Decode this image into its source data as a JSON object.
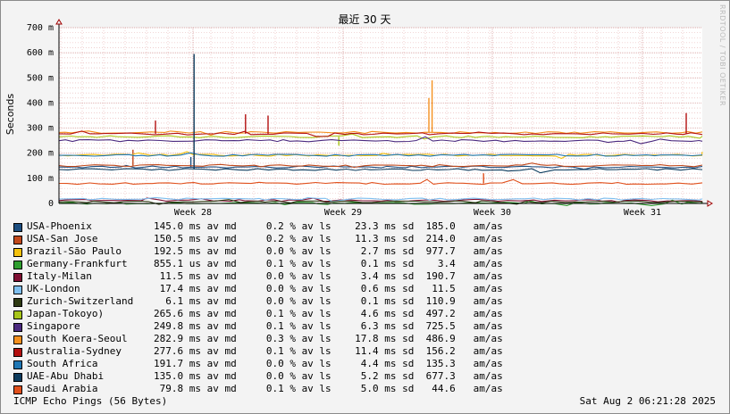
{
  "chart_data": {
    "type": "line",
    "title": "最近 30 天",
    "ylabel": "Seconds",
    "ylim": [
      0,
      0.7
    ],
    "y_ticks": [
      "0",
      "100 m",
      "200 m",
      "300 m",
      "400 m",
      "500 m",
      "600 m",
      "700 m"
    ],
    "x_ticks": [
      "Week 28",
      "Week 29",
      "Week 30",
      "Week 31"
    ],
    "watermark": "RRDTOOL / TOBI OETIKER",
    "grid": true,
    "legend_position": "bottom",
    "series": [
      {
        "name": "USA-Phoenix",
        "color": "#1c4e80",
        "stats": "145.0 ms av md     0.2 % av ls    23.3 ms sd  185.0   am/as",
        "value": 0.145,
        "spikes": [
          [
            0.205,
            0.185
          ]
        ]
      },
      {
        "name": "USA-San Jose",
        "color": "#c1481b",
        "stats": "150.5 ms av md     0.2 % av ls    11.3 ms sd  214.0   am/as",
        "value": 0.1505,
        "spikes": [
          [
            0.115,
            0.214
          ]
        ]
      },
      {
        "name": "Brazil-São Paulo",
        "color": "#f4c20d",
        "stats": "192.5 ms av md     0.0 % av ls     2.7 ms sd  977.7   am/as",
        "value": 0.1925,
        "spikes": []
      },
      {
        "name": "Germany-Frankfurt",
        "color": "#2f9e2f",
        "stats": "855.1 us av md     0.1 % av ls     0.1 ms sd    3.4   am/as",
        "value": 0.00086,
        "spikes": []
      },
      {
        "name": "Italy-Milan",
        "color": "#7f0f33",
        "stats": " 11.5 ms av md     0.0 % av ls     3.4 ms sd  190.7   am/as",
        "value": 0.0115,
        "spikes": []
      },
      {
        "name": "UK-London",
        "color": "#7fbfef",
        "stats": " 17.4 ms av md     0.0 % av ls     0.6 ms sd   11.5   am/as",
        "value": 0.0174,
        "spikes": []
      },
      {
        "name": "Zurich-Switzerland",
        "color": "#2e3a13",
        "stats": "  6.1 ms av md     0.0 % av ls     0.1 ms sd  110.9   am/as",
        "value": 0.0061,
        "spikes": []
      },
      {
        "name": "Japan-Tokoyo)",
        "color": "#a8c61a",
        "stats": "265.6 ms av md     0.1 % av ls     4.6 ms sd  497.2   am/as",
        "value": 0.2656,
        "spikes": [
          [
            0.435,
            0.23
          ]
        ]
      },
      {
        "name": "Singapore",
        "color": "#4b2a7f",
        "stats": "249.8 ms av md     0.1 % av ls     6.3 ms sd  725.5   am/as",
        "value": 0.2498,
        "spikes": []
      },
      {
        "name": "South Koera-Seoul",
        "color": "#f4901e",
        "stats": "282.9 ms av md     0.3 % av ls    17.8 ms sd  486.9   am/as",
        "value": 0.2829,
        "spikes": [
          [
            0.575,
            0.42
          ],
          [
            0.58,
            0.49
          ]
        ]
      },
      {
        "name": "Australia-Sydney",
        "color": "#b30f0f",
        "stats": "277.6 ms av md     0.1 % av ls    11.4 ms sd  156.2   am/as",
        "value": 0.2776,
        "spikes": [
          [
            0.15,
            0.33
          ],
          [
            0.29,
            0.355
          ],
          [
            0.325,
            0.35
          ],
          [
            0.975,
            0.36
          ]
        ]
      },
      {
        "name": "South Africa",
        "color": "#1f77b4",
        "stats": "191.7 ms av md     0.0 % av ls     4.4 ms sd  135.3   am/as",
        "value": 0.1917,
        "spikes": []
      },
      {
        "name": "UAE-Abu Dhabi",
        "color": "#0d3c5e",
        "stats": "135.0 ms av md     0.0 % av ls     5.2 ms sd  677.3   am/as",
        "value": 0.135,
        "spikes": [
          [
            0.21,
            0.595
          ]
        ]
      },
      {
        "name": "Saudi Arabia",
        "color": "#e0501c",
        "stats": " 79.8 ms av md     0.1 % av ls     5.0 ms sd   44.6   am/as",
        "value": 0.0798,
        "spikes": [
          [
            0.66,
            0.12
          ]
        ]
      }
    ]
  },
  "footer": {
    "left": "ICMP Echo Pings (56 Bytes)",
    "right": "Sat Aug  2 06:21:28 2025"
  }
}
